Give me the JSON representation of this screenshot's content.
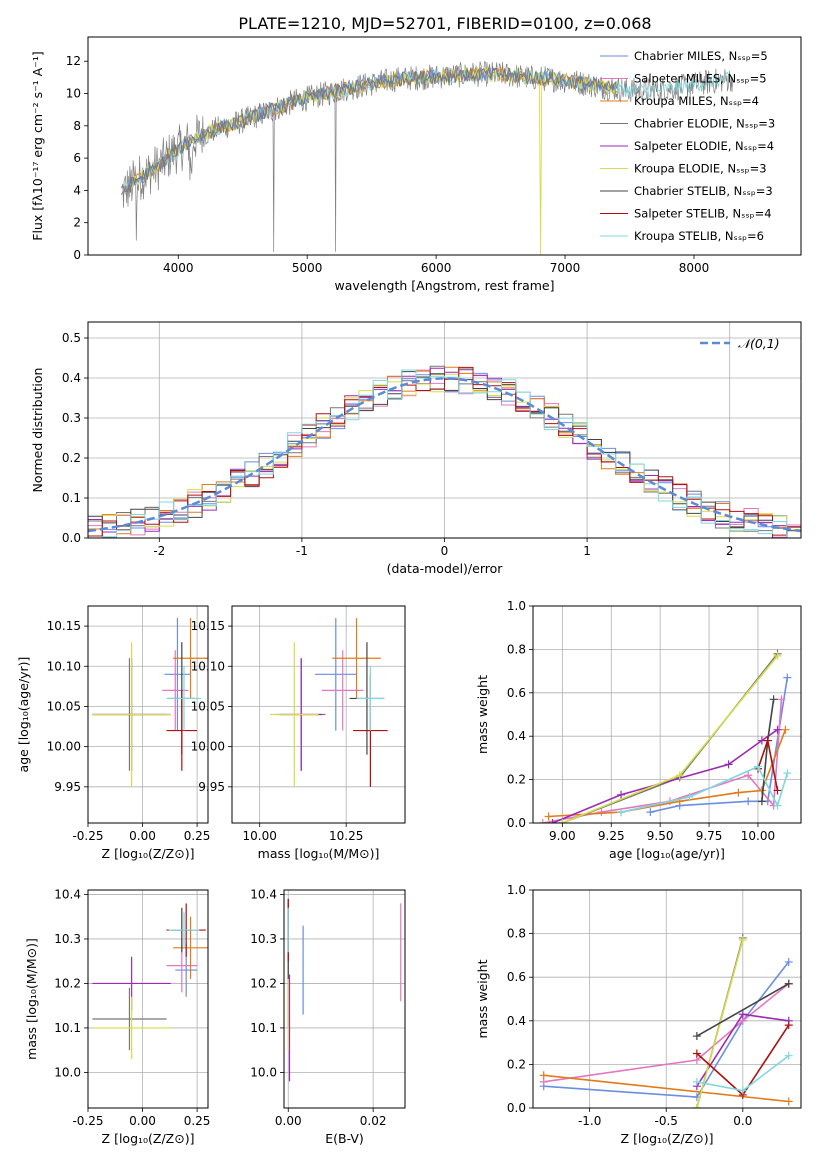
{
  "figure_title": "PLATE=1210, MJD=52701, FIBERID=0100, z=0.068",
  "model_colors": [
    "#6a8ee2",
    "#e377c2",
    "#e07b1a",
    "#777777",
    "#9b2bb5",
    "#d6dc4a",
    "#444444",
    "#b01010",
    "#7fd8df"
  ],
  "chart_data": [
    {
      "id": "spectrum",
      "type": "line",
      "title": "PLATE=1210, MJD=52701, FIBERID=0100, z=0.068",
      "xlabel": "wavelength [Angstrom, rest frame]",
      "ylabel": "Flux [fλ10⁻¹⁷ erg cm⁻² s⁻¹ A⁻¹]",
      "xlim": [
        3300,
        8830
      ],
      "ylim": [
        0,
        13.5
      ],
      "xticks": [
        4000,
        5000,
        6000,
        7000,
        8000
      ],
      "yticks": [
        0,
        2,
        4,
        6,
        8,
        10,
        12
      ],
      "legend_position": "right",
      "legend": [
        "Chabrier MILES, Nₛₛₚ=5",
        "Salpeter MILES, Nₛₛₚ=5",
        "Kroupa MILES, Nₛₛₚ=4",
        "Chabrier ELODIE, Nₛₛₚ=3",
        "Salpeter ELODIE, Nₛₛₚ=4",
        "Kroupa ELODIE, Nₛₛₚ=3",
        "Chabrier STELIB, Nₛₛₚ=3",
        "Salpeter STELIB, Nₛₛₚ=4",
        "Kroupa STELIB, Nₛₛₚ=6"
      ],
      "continuum_points": [
        [
          3560,
          3.8
        ],
        [
          3700,
          4.8
        ],
        [
          3850,
          5.5
        ],
        [
          3950,
          6.3
        ],
        [
          4050,
          6.8
        ],
        [
          4150,
          7.3
        ],
        [
          4300,
          7.8
        ],
        [
          4500,
          8.3
        ],
        [
          4700,
          8.9
        ],
        [
          4900,
          9.5
        ],
        [
          5100,
          9.9
        ],
        [
          5300,
          10.3
        ],
        [
          5500,
          10.6
        ],
        [
          5700,
          10.9
        ],
        [
          5900,
          11.0
        ],
        [
          6100,
          11.1
        ],
        [
          6300,
          11.2
        ],
        [
          6500,
          11.2
        ],
        [
          6700,
          11.0
        ],
        [
          6900,
          10.9
        ],
        [
          7100,
          10.7
        ],
        [
          7300,
          10.4
        ],
        [
          7500,
          10.2
        ],
        [
          7700,
          10.2
        ],
        [
          7900,
          10.4
        ],
        [
          8100,
          10.7
        ],
        [
          8300,
          10.9
        ]
      ]
    },
    {
      "id": "residuals",
      "type": "bar",
      "xlabel": "(data-model)/error",
      "ylabel": "Normed distribution",
      "xlim": [
        -2.5,
        2.5
      ],
      "ylim": [
        0,
        0.54
      ],
      "xticks": [
        -2,
        -1,
        0,
        1,
        2
      ],
      "yticks": [
        0.0,
        0.1,
        0.2,
        0.3,
        0.4,
        0.5
      ],
      "bin_width": 0.1,
      "legend": [
        "𝒩(0,1)"
      ],
      "legend_position": "top-right",
      "reference_curve": "gaussian N(0,1)"
    },
    {
      "id": "age_vs_Z",
      "type": "scatter",
      "xlabel": "Z [log₁₀(Z/Z⊙)]",
      "ylabel": "age  [log₁₀(age/yr)]",
      "xlim": [
        -0.25,
        0.3
      ],
      "ylim": [
        9.905,
        10.175
      ],
      "xticks": [
        -0.25,
        0.0,
        0.25
      ],
      "yticks": [
        9.95,
        10.0,
        10.05,
        10.1,
        10.15
      ],
      "points": [
        {
          "x": 0.16,
          "xerr": 0.06,
          "y": 10.09,
          "yerr": 0.07
        },
        {
          "x": 0.15,
          "xerr": 0.06,
          "y": 10.07,
          "yerr": 0.05
        },
        {
          "x": 0.22,
          "xerr": 0.08,
          "y": 10.11,
          "yerr": 0.05
        },
        {
          "x": -0.06,
          "xerr": 0.17,
          "y": 10.04,
          "yerr": 0.07
        },
        {
          "x": -0.05,
          "xerr": 0.18,
          "y": 10.04,
          "yerr": 0.07
        },
        {
          "x": -0.05,
          "xerr": 0.18,
          "y": 10.04,
          "yerr": 0.09
        },
        {
          "x": 0.18,
          "xerr": 0.06,
          "y": 10.06,
          "yerr": 0.07
        },
        {
          "x": 0.18,
          "xerr": 0.07,
          "y": 10.02,
          "yerr": 0.05
        },
        {
          "x": 0.19,
          "xerr": 0.08,
          "y": 10.06,
          "yerr": 0.04
        }
      ]
    },
    {
      "id": "age_vs_mass",
      "type": "scatter",
      "xlabel": "mass [log₁₀(M/M⊙)]",
      "ylabel": "",
      "xlim": [
        9.92,
        10.42
      ],
      "ylim": [
        9.905,
        10.175
      ],
      "xticks": [
        10.0,
        10.25
      ],
      "yticks": [
        9.95,
        10.0,
        10.05,
        10.1,
        10.15
      ],
      "points": [
        {
          "x": 10.22,
          "xerr": 0.06,
          "y": 10.09,
          "yerr": 0.07
        },
        {
          "x": 10.24,
          "xerr": 0.06,
          "y": 10.07,
          "yerr": 0.05
        },
        {
          "x": 10.28,
          "xerr": 0.07,
          "y": 10.11,
          "yerr": 0.05
        },
        {
          "x": 10.12,
          "xerr": 0.07,
          "y": 10.04,
          "yerr": 0.07
        },
        {
          "x": 10.12,
          "xerr": 0.06,
          "y": 10.04,
          "yerr": 0.07
        },
        {
          "x": 10.1,
          "xerr": 0.07,
          "y": 10.04,
          "yerr": 0.09
        },
        {
          "x": 10.31,
          "xerr": 0.05,
          "y": 10.06,
          "yerr": 0.07
        },
        {
          "x": 10.32,
          "xerr": 0.05,
          "y": 10.02,
          "yerr": 0.07
        },
        {
          "x": 10.32,
          "xerr": 0.04,
          "y": 10.06,
          "yerr": 0.04
        }
      ]
    },
    {
      "id": "mass_weight_vs_age",
      "type": "line",
      "xlabel": "age  [log₁₀(age/yr)]",
      "ylabel": "mass weight",
      "xlim": [
        8.85,
        10.22
      ],
      "ylim": [
        0.0,
        1.0
      ],
      "xticks": [
        9.0,
        9.25,
        9.5,
        9.75,
        10.0
      ],
      "yticks": [
        0.0,
        0.2,
        0.4,
        0.6,
        0.8,
        1.0
      ],
      "series": [
        {
          "x": [
            9.45,
            9.6,
            9.95,
            10.05,
            10.15
          ],
          "y": [
            0.05,
            0.08,
            0.1,
            0.1,
            0.67
          ]
        },
        {
          "x": [
            8.9,
            9.2,
            9.55,
            9.95,
            10.08,
            10.12
          ],
          "y": [
            0.0,
            0.05,
            0.1,
            0.22,
            0.08,
            0.57
          ]
        },
        {
          "x": [
            8.93,
            9.3,
            9.6,
            9.9,
            10.02,
            10.14
          ],
          "y": [
            0.03,
            0.05,
            0.1,
            0.14,
            0.15,
            0.43
          ]
        },
        {
          "x": [
            9.0,
            9.6,
            10.1
          ],
          "y": [
            0.0,
            0.21,
            0.78
          ]
        },
        {
          "x": [
            8.95,
            9.3,
            9.85,
            10.02,
            10.1
          ],
          "y": [
            0.0,
            0.13,
            0.27,
            0.38,
            0.43
          ]
        },
        {
          "x": [
            9.0,
            9.6,
            10.1
          ],
          "y": [
            0.0,
            0.22,
            0.77
          ]
        },
        {
          "x": [
            10.02,
            10.05,
            10.08
          ],
          "y": [
            0.1,
            0.38,
            0.57
          ]
        },
        {
          "x": [
            10.0,
            10.05,
            10.1
          ],
          "y": [
            0.25,
            0.38,
            0.15
          ]
        },
        {
          "x": [
            9.3,
            9.65,
            10.0,
            10.1,
            10.15
          ],
          "y": [
            0.05,
            0.12,
            0.26,
            0.08,
            0.23
          ]
        }
      ]
    },
    {
      "id": "mass_vs_Z",
      "type": "scatter",
      "xlabel": "Z [log₁₀(Z/Z⊙)]",
      "ylabel": "mass [log₁₀(M/M⊙)]",
      "xlim": [
        -0.25,
        0.3
      ],
      "ylim": [
        9.92,
        10.41
      ],
      "xticks": [
        -0.25,
        0.0,
        0.25
      ],
      "yticks": [
        10.0,
        10.1,
        10.2,
        10.3,
        10.4
      ],
      "points": [
        {
          "x": 0.2,
          "xerr": 0.05,
          "y": 10.23,
          "yerr": 0.06
        },
        {
          "x": 0.18,
          "xerr": 0.07,
          "y": 10.24,
          "yerr": 0.06
        },
        {
          "x": 0.22,
          "xerr": 0.08,
          "y": 10.28,
          "yerr": 0.07
        },
        {
          "x": -0.06,
          "xerr": 0.17,
          "y": 10.12,
          "yerr": 0.07
        },
        {
          "x": -0.05,
          "xerr": 0.18,
          "y": 10.2,
          "yerr": 0.06
        },
        {
          "x": -0.05,
          "xerr": 0.18,
          "y": 10.1,
          "yerr": 0.07
        },
        {
          "x": 0.18,
          "xerr": 0.05,
          "y": 10.32,
          "yerr": 0.05
        },
        {
          "x": 0.2,
          "xerr": 0.09,
          "y": 10.32,
          "yerr": 0.06
        },
        {
          "x": 0.19,
          "xerr": 0.07,
          "y": 10.32,
          "yerr": 0.04
        }
      ]
    },
    {
      "id": "mass_vs_ebv",
      "type": "scatter",
      "xlabel": "E(B-V)",
      "ylabel": "",
      "xlim": [
        -0.001,
        0.0275
      ],
      "ylim": [
        9.92,
        10.41
      ],
      "xticks": [
        0.0,
        0.02
      ],
      "yticks": [
        10.0,
        10.1,
        10.2,
        10.3,
        10.4
      ],
      "points": [
        {
          "x": 0.0035,
          "y": 10.23,
          "yerr": 0.1
        },
        {
          "x": 0.0265,
          "y": 10.27,
          "yerr": 0.11
        },
        {
          "x": 0.0,
          "y": 10.3,
          "yerr": 0.08
        },
        {
          "x": 0.0,
          "y": 10.2,
          "yerr": 0.1
        },
        {
          "x": 0.0003,
          "y": 10.1,
          "yerr": 0.12
        },
        {
          "x": 0.0,
          "y": 10.15,
          "yerr": 0.1
        },
        {
          "x": 0.0,
          "y": 10.3,
          "yerr": 0.09
        },
        {
          "x": 0.0,
          "y": 10.32,
          "yerr": 0.07
        },
        {
          "x": 0.0,
          "y": 10.32,
          "yerr": 0.05
        }
      ]
    },
    {
      "id": "mass_weight_vs_Z",
      "type": "line",
      "xlabel": "Z [log₁₀(Z/Z⊙)]",
      "ylabel": "mass weight",
      "xlim": [
        -1.37,
        0.38
      ],
      "ylim": [
        0.0,
        1.0
      ],
      "xticks": [
        -1.0,
        -0.5,
        0.0
      ],
      "yticks": [
        0.0,
        0.2,
        0.4,
        0.6,
        0.8,
        1.0
      ],
      "series": [
        {
          "x": [
            -1.3,
            -0.3,
            0.0,
            0.3
          ],
          "y": [
            0.1,
            0.05,
            0.4,
            0.67
          ]
        },
        {
          "x": [
            -1.3,
            -0.3,
            0.0,
            0.3
          ],
          "y": [
            0.12,
            0.22,
            0.4,
            0.57
          ]
        },
        {
          "x": [
            -1.3,
            0.3
          ],
          "y": [
            0.15,
            0.03
          ]
        },
        {
          "x": [
            -0.3,
            0.0
          ],
          "y": [
            0.0,
            0.78
          ]
        },
        {
          "x": [
            -0.3,
            0.0,
            0.3
          ],
          "y": [
            0.1,
            0.43,
            0.4
          ]
        },
        {
          "x": [
            -0.3,
            0.0
          ],
          "y": [
            0.0,
            0.77
          ]
        },
        {
          "x": [
            -0.3,
            0.3
          ],
          "y": [
            0.33,
            0.57
          ]
        },
        {
          "x": [
            -0.3,
            0.0,
            0.3
          ],
          "y": [
            0.25,
            0.06,
            0.38
          ]
        },
        {
          "x": [
            -0.3,
            0.0,
            0.3
          ],
          "y": [
            0.12,
            0.08,
            0.24
          ]
        }
      ]
    }
  ]
}
